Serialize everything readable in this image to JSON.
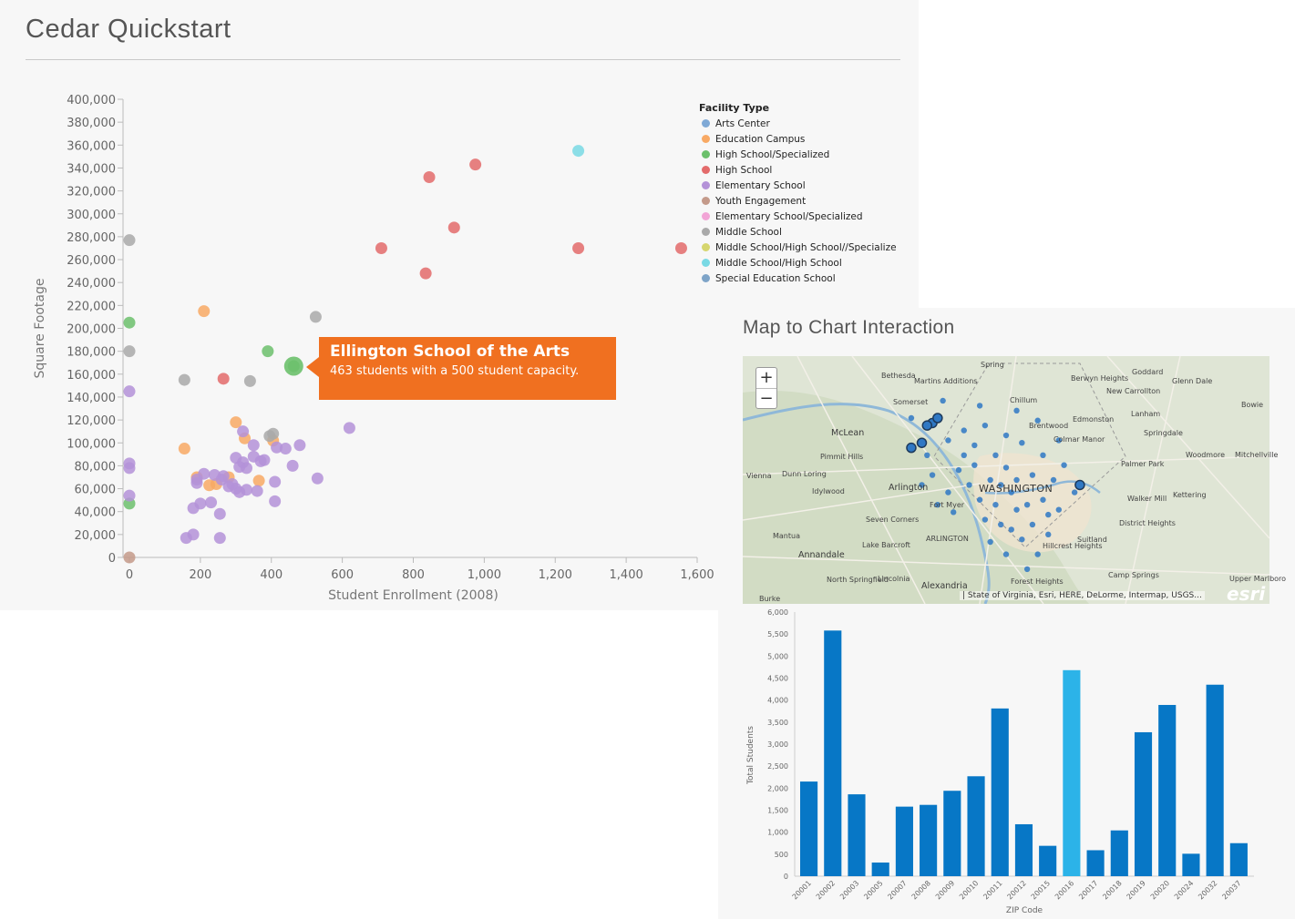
{
  "page": {
    "title": "Cedar Quickstart",
    "map_title": "Map to Chart Interaction"
  },
  "chart_data": [
    {
      "type": "scatter",
      "title": "",
      "xlabel": "Student Enrollment (2008)",
      "ylabel": "Square Footage",
      "xlim": [
        0,
        1600
      ],
      "ylim": [
        0,
        400000
      ],
      "x_ticks": [
        "0",
        "200",
        "400",
        "600",
        "800",
        "1,000",
        "1,200",
        "1,400",
        "1,600"
      ],
      "y_ticks": [
        "0",
        "20,000",
        "40,000",
        "60,000",
        "80,000",
        "100,000",
        "120,000",
        "140,000",
        "160,000",
        "180,000",
        "200,000",
        "220,000",
        "240,000",
        "260,000",
        "280,000",
        "300,000",
        "320,000",
        "340,000",
        "360,000",
        "380,000",
        "400,000"
      ],
      "legend_title": "Facility Type",
      "legend_position": "top-right",
      "series": [
        {
          "name": "Arts Center",
          "color": "#7fa9d6",
          "points": []
        },
        {
          "name": "Education Campus",
          "color": "#f8a964",
          "points": [
            [
              210,
              215000
            ],
            [
              155,
              95000
            ],
            [
              300,
              118000
            ],
            [
              325,
              104000
            ],
            [
              405,
              102000
            ],
            [
              190,
              70000
            ],
            [
              245,
              64000
            ],
            [
              280,
              70000
            ],
            [
              365,
              67000
            ],
            [
              225,
              63000
            ]
          ]
        },
        {
          "name": "High School/Specialized",
          "color": "#6cc06c",
          "points": [
            [
              0,
              205000
            ],
            [
              0,
              47000
            ],
            [
              390,
              180000
            ],
            [
              463,
              167000
            ]
          ]
        },
        {
          "name": "High School",
          "color": "#e36b6b",
          "points": [
            [
              845,
              332000
            ],
            [
              975,
              343000
            ],
            [
              915,
              288000
            ],
            [
              710,
              270000
            ],
            [
              835,
              248000
            ],
            [
              1265,
              270000
            ],
            [
              1555,
              270000
            ],
            [
              265,
              156000
            ]
          ]
        },
        {
          "name": "Elementary School",
          "color": "#b492d8",
          "points": [
            [
              0,
              145000
            ],
            [
              0,
              82000
            ],
            [
              0,
              78000
            ],
            [
              0,
              54000
            ],
            [
              620,
              113000
            ],
            [
              530,
              69000
            ],
            [
              480,
              98000
            ],
            [
              440,
              95000
            ],
            [
              460,
              80000
            ],
            [
              350,
              98000
            ],
            [
              320,
              110000
            ],
            [
              300,
              87000
            ],
            [
              320,
              83000
            ],
            [
              330,
              78000
            ],
            [
              310,
              79000
            ],
            [
              350,
              88000
            ],
            [
              380,
              85000
            ],
            [
              370,
              84000
            ],
            [
              415,
              96000
            ],
            [
              410,
              66000
            ],
            [
              410,
              49000
            ],
            [
              360,
              58000
            ],
            [
              330,
              59000
            ],
            [
              310,
              57000
            ],
            [
              300,
              60000
            ],
            [
              280,
              62000
            ],
            [
              290,
              64000
            ],
            [
              260,
              68000
            ],
            [
              265,
              71000
            ],
            [
              240,
              72000
            ],
            [
              210,
              73000
            ],
            [
              190,
              68000
            ],
            [
              190,
              65000
            ],
            [
              200,
              47000
            ],
            [
              230,
              48000
            ],
            [
              180,
              43000
            ],
            [
              255,
              38000
            ],
            [
              180,
              20000
            ],
            [
              160,
              17000
            ],
            [
              255,
              17000
            ]
          ]
        },
        {
          "name": "Youth Engagement",
          "color": "#c49a8a",
          "points": [
            [
              0,
              0
            ]
          ]
        },
        {
          "name": "Elementary School/Specialized",
          "color": "#f2a5d6",
          "points": []
        },
        {
          "name": "Middle School",
          "color": "#a9a9a9",
          "points": [
            [
              0,
              277000
            ],
            [
              0,
              180000
            ],
            [
              525,
              210000
            ],
            [
              155,
              155000
            ],
            [
              340,
              154000
            ],
            [
              405,
              108000
            ],
            [
              395,
              106000
            ]
          ]
        },
        {
          "name": "Middle School/High School//Specialize",
          "color": "#d6d66e",
          "points": []
        },
        {
          "name": "Middle School/High School",
          "color": "#79d9e4",
          "points": [
            [
              1265,
              355000
            ]
          ]
        },
        {
          "name": "Special Education School",
          "color": "#7ea4c8",
          "points": []
        }
      ],
      "highlight": {
        "x": 463,
        "y": 167000
      }
    },
    {
      "type": "bar",
      "title": "",
      "xlabel": "ZIP Code",
      "ylabel": "Total Students",
      "ylim": [
        0,
        6000
      ],
      "y_ticks": [
        "0",
        "500",
        "1,000",
        "1,500",
        "2,000",
        "2,500",
        "3,000",
        "3,500",
        "4,000",
        "4,500",
        "5,000",
        "5,500",
        "6,000"
      ],
      "categories": [
        "20001",
        "20002",
        "20003",
        "20005",
        "20007",
        "20008",
        "20009",
        "20010",
        "20011",
        "20012",
        "20015",
        "20016",
        "20017",
        "20018",
        "20019",
        "20020",
        "20024",
        "20032",
        "20037"
      ],
      "values": [
        2150,
        5580,
        1860,
        310,
        1580,
        1620,
        1940,
        2270,
        3810,
        1180,
        690,
        4680,
        590,
        1040,
        3270,
        3890,
        510,
        4350,
        750
      ],
      "highlighted_category": "20016",
      "bar_color": "#0777c6",
      "highlight_color": "#2cb3e8"
    }
  ],
  "tooltip": {
    "title": "Ellington School of the Arts",
    "subtitle": "463 students with a 500 student capacity."
  },
  "map": {
    "zoom_in": "+",
    "zoom_out": "−",
    "attribution": "| State of Virginia, Esri, HERE, DeLorme, Intermap, USGS...",
    "logo": "esri",
    "labels": [
      "Bethesda",
      "Spring",
      "Martins Additions",
      "Berwyn Heights",
      "Goddard",
      "Glenn Dale",
      "Somerset",
      "Chillum",
      "New Carrollton",
      "Bowie",
      "Brentwood",
      "Edmonston",
      "Lanham",
      "McLean",
      "Colmar Manor",
      "Springdale",
      "Woodmore",
      "Mitchellville",
      "Pimmit Hills",
      "Dunn Loring",
      "Palmer Park",
      "Vienna",
      "Arlington",
      "WASHINGTON",
      "Walker Mill",
      "Kettering",
      "Idylwood",
      "Fort Myer",
      "Seven Corners",
      "District Heights",
      "Mantua",
      "Lake Barcroft",
      "ARLINGTON",
      "Hillcrest Heights",
      "Suitland",
      "Annandale",
      "Camp Springs",
      "North Springfield",
      "Lincolnia",
      "Alexandria",
      "Forest Heights",
      "Upper Marlboro",
      "Burke"
    ],
    "markers": [
      [
        0.32,
        0.25
      ],
      [
        0.38,
        0.18
      ],
      [
        0.42,
        0.3
      ],
      [
        0.35,
        0.4
      ],
      [
        0.36,
        0.48
      ],
      [
        0.39,
        0.55
      ],
      [
        0.41,
        0.46
      ],
      [
        0.44,
        0.36
      ],
      [
        0.46,
        0.28
      ],
      [
        0.48,
        0.4
      ],
      [
        0.47,
        0.5
      ],
      [
        0.5,
        0.45
      ],
      [
        0.51,
        0.55
      ],
      [
        0.53,
        0.35
      ],
      [
        0.55,
        0.48
      ],
      [
        0.52,
        0.62
      ],
      [
        0.49,
        0.68
      ],
      [
        0.47,
        0.75
      ],
      [
        0.5,
        0.8
      ],
      [
        0.53,
        0.74
      ],
      [
        0.55,
        0.68
      ],
      [
        0.57,
        0.58
      ],
      [
        0.59,
        0.5
      ],
      [
        0.6,
        0.62
      ],
      [
        0.58,
        0.72
      ],
      [
        0.56,
        0.8
      ],
      [
        0.54,
        0.86
      ],
      [
        0.45,
        0.58
      ],
      [
        0.43,
        0.52
      ],
      [
        0.4,
        0.63
      ],
      [
        0.37,
        0.6
      ],
      [
        0.44,
        0.44
      ],
      [
        0.5,
        0.32
      ],
      [
        0.52,
        0.22
      ],
      [
        0.45,
        0.2
      ],
      [
        0.57,
        0.4
      ],
      [
        0.61,
        0.44
      ],
      [
        0.63,
        0.55
      ],
      [
        0.48,
        0.6
      ],
      [
        0.46,
        0.66
      ],
      [
        0.52,
        0.5
      ],
      [
        0.56,
        0.26
      ],
      [
        0.42,
        0.4
      ],
      [
        0.39,
        0.34
      ],
      [
        0.34,
        0.52
      ],
      [
        0.51,
        0.7
      ],
      [
        0.54,
        0.6
      ],
      [
        0.58,
        0.64
      ],
      [
        0.6,
        0.34
      ],
      [
        0.49,
        0.52
      ]
    ],
    "highlighted_markers": [
      [
        0.36,
        0.27
      ],
      [
        0.37,
        0.25
      ],
      [
        0.35,
        0.28
      ],
      [
        0.34,
        0.35
      ],
      [
        0.32,
        0.37
      ],
      [
        0.64,
        0.52
      ]
    ]
  }
}
